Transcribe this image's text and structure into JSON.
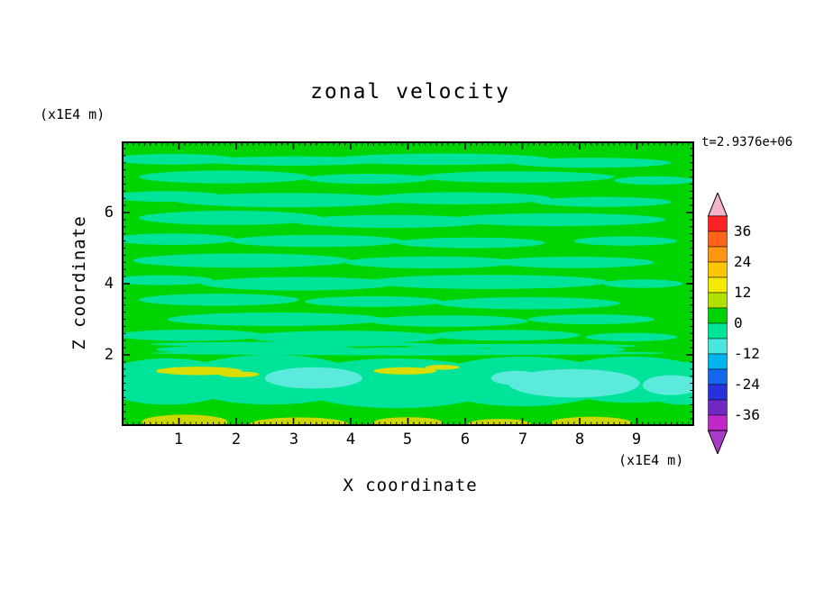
{
  "chart_data": {
    "type": "contour",
    "title": "zonal velocity",
    "xlabel": "X coordinate",
    "ylabel": "Z coordinate",
    "x_unit_label": "(x1E4 m)",
    "y_unit_label": "(x1E4 m)",
    "time_label": "t=2.9376e+06",
    "xlim": [
      0,
      10
    ],
    "ylim": [
      0,
      8
    ],
    "xticks": [
      "1",
      "2",
      "3",
      "4",
      "5",
      "6",
      "7",
      "8",
      "9"
    ],
    "yticks": [
      "6",
      "4",
      "2"
    ],
    "grid": false,
    "contour_interval": 6,
    "legend_position": "right-colorbar",
    "field_summary": "Zonal velocity is near zero (between -6 and +6) over most of the domain: green fill (0..6) interleaved with horizontal spring-green streaks (-6..0). Below z~2 a spring-green band holds cyan minima (about -12) near x~3.3 and x~7.5-8.5 and weak yellow maxima (about +12) near x~1.3 and x~5 and along the bottom edge at x~1,3,5,6.6,8.2.",
    "colors": {
      "base": "#00d400",
      "spring": "#00e49a",
      "cyan": "#5ceadd",
      "yellow": "#dade00",
      "yellow2": "#ccd800"
    },
    "ticks": {
      "x_minor_step": 0.1,
      "x_major_every": 1,
      "y_minor_step": 0.2,
      "y_major_every": 2
    },
    "field": {
      "streaks": [
        [
          0.9,
          7.5,
          1.1,
          0.15
        ],
        [
          3.0,
          7.45,
          1.6,
          0.13
        ],
        [
          5.6,
          7.5,
          1.9,
          0.16
        ],
        [
          8.2,
          7.4,
          1.4,
          0.14
        ],
        [
          1.8,
          7.0,
          1.5,
          0.18
        ],
        [
          4.3,
          6.95,
          1.1,
          0.14
        ],
        [
          6.9,
          7.0,
          1.7,
          0.16
        ],
        [
          9.3,
          6.9,
          0.7,
          0.12
        ],
        [
          0.8,
          6.45,
          1.0,
          0.15
        ],
        [
          2.9,
          6.35,
          2.0,
          0.2
        ],
        [
          5.9,
          6.4,
          1.6,
          0.17
        ],
        [
          8.4,
          6.3,
          1.2,
          0.14
        ],
        [
          1.9,
          5.85,
          1.6,
          0.2
        ],
        [
          4.7,
          5.75,
          1.7,
          0.18
        ],
        [
          7.6,
          5.8,
          1.9,
          0.18
        ],
        [
          0.9,
          5.25,
          1.1,
          0.16
        ],
        [
          3.4,
          5.2,
          1.5,
          0.17
        ],
        [
          6.1,
          5.15,
          1.3,
          0.15
        ],
        [
          8.8,
          5.2,
          0.9,
          0.13
        ],
        [
          2.1,
          4.65,
          1.9,
          0.2
        ],
        [
          5.4,
          4.6,
          1.5,
          0.17
        ],
        [
          7.9,
          4.6,
          1.4,
          0.16
        ],
        [
          0.7,
          4.1,
          0.9,
          0.14
        ],
        [
          3.1,
          4.0,
          1.7,
          0.19
        ],
        [
          6.4,
          4.05,
          2.1,
          0.2
        ],
        [
          9.1,
          4.0,
          0.7,
          0.12
        ],
        [
          1.7,
          3.55,
          1.4,
          0.17
        ],
        [
          4.4,
          3.5,
          1.2,
          0.15
        ],
        [
          7.1,
          3.45,
          1.6,
          0.17
        ],
        [
          2.7,
          3.0,
          1.9,
          0.19
        ],
        [
          5.7,
          2.95,
          1.4,
          0.16
        ],
        [
          8.2,
          3.0,
          1.1,
          0.14
        ],
        [
          1.2,
          2.55,
          1.3,
          0.16
        ],
        [
          3.9,
          2.5,
          1.7,
          0.18
        ],
        [
          6.7,
          2.55,
          1.3,
          0.15
        ],
        [
          8.9,
          2.5,
          0.8,
          0.12
        ],
        [
          2.4,
          2.15,
          1.8,
          0.13
        ],
        [
          5.2,
          2.1,
          1.5,
          0.12
        ],
        [
          7.6,
          2.15,
          1.2,
          0.11
        ],
        [
          5.0,
          2.05,
          4.5,
          0.06
        ],
        [
          3.0,
          2.3,
          2.5,
          0.07
        ],
        [
          7.0,
          2.25,
          2.0,
          0.06
        ]
      ],
      "bottom_band": [
        [
          0.8,
          1.25,
          1.2,
          0.65
        ],
        [
          2.6,
          1.3,
          1.6,
          0.7
        ],
        [
          4.8,
          1.2,
          1.8,
          0.7
        ],
        [
          7.0,
          1.25,
          1.6,
          0.7
        ],
        [
          8.9,
          1.3,
          1.4,
          0.65
        ],
        [
          9.8,
          1.2,
          0.8,
          0.6
        ]
      ],
      "cyan_patches": [
        [
          3.35,
          1.35,
          0.85,
          0.3
        ],
        [
          7.9,
          1.2,
          1.15,
          0.4
        ],
        [
          6.9,
          1.35,
          0.45,
          0.2
        ],
        [
          9.6,
          1.15,
          0.5,
          0.28
        ]
      ],
      "yellow_patches": [
        [
          1.35,
          1.55,
          0.75,
          0.12
        ],
        [
          2.05,
          1.45,
          0.35,
          0.08
        ],
        [
          4.95,
          1.55,
          0.55,
          0.1
        ],
        [
          5.6,
          1.65,
          0.3,
          0.07
        ]
      ],
      "bottom_yellow": [
        [
          1.1,
          0.12,
          0.75,
          0.2
        ],
        [
          3.1,
          0.06,
          0.85,
          0.18
        ],
        [
          5.0,
          0.1,
          0.6,
          0.15
        ],
        [
          6.6,
          0.06,
          0.55,
          0.14
        ],
        [
          8.2,
          0.1,
          0.7,
          0.16
        ]
      ]
    },
    "colorbar": {
      "labels": [
        "36",
        "24",
        "12",
        "0",
        "-12",
        "-24",
        "-36"
      ],
      "values": [
        36,
        24,
        12,
        0,
        -12,
        -24,
        -36
      ],
      "vmin": -42,
      "vmax": 42,
      "segment_colors_top_to_bottom": [
        "#ff2222",
        "#ff6418",
        "#ff9612",
        "#ffc404",
        "#f2ea00",
        "#b4e000",
        "#00d400",
        "#00e49a",
        "#4ae8dc",
        "#00b4f0",
        "#1468f0",
        "#2832dc",
        "#7028c4",
        "#c028c8"
      ],
      "arrow_top_color": "#f2b4c8",
      "arrow_bottom_color": "#a83cc8"
    }
  }
}
